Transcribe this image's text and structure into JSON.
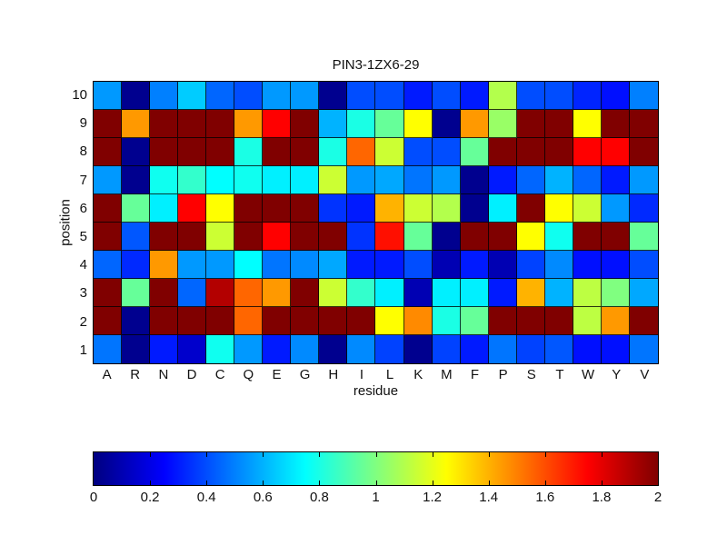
{
  "figure": {
    "background_color": "#ffffff",
    "text_color": "#000000"
  },
  "chart_data": {
    "type": "heatmap",
    "title": "PIN3-1ZX6-29",
    "xlabel": "residue",
    "ylabel": "position",
    "x_categories": [
      "A",
      "R",
      "N",
      "D",
      "C",
      "Q",
      "E",
      "G",
      "H",
      "I",
      "L",
      "K",
      "M",
      "F",
      "P",
      "S",
      "T",
      "W",
      "Y",
      "V"
    ],
    "y_categories": [
      "10",
      "9",
      "8",
      "7",
      "6",
      "5",
      "4",
      "3",
      "2",
      "1"
    ],
    "rows_order": "top_to_bottom, position 10 at top, position 1 at bottom",
    "value_range": [
      0,
      2
    ],
    "colormap": "jet",
    "grid_line_color": "#000000",
    "values": [
      [
        0.55,
        0.03,
        0.5,
        0.65,
        0.45,
        0.4,
        0.55,
        0.55,
        0.03,
        0.4,
        0.4,
        0.3,
        0.4,
        0.3,
        1.1,
        0.4,
        0.4,
        0.32,
        0.28,
        0.5
      ],
      [
        2.0,
        1.45,
        2.0,
        2.0,
        2.0,
        1.45,
        1.75,
        2.0,
        0.6,
        0.8,
        0.95,
        1.25,
        0.03,
        1.45,
        1.05,
        2.0,
        2.0,
        1.25,
        2.0,
        2.0
      ],
      [
        2.0,
        0.03,
        2.0,
        2.0,
        2.0,
        0.8,
        2.0,
        2.0,
        0.8,
        1.55,
        1.15,
        0.4,
        0.4,
        0.95,
        2.0,
        2.0,
        2.0,
        1.75,
        1.75,
        2.0
      ],
      [
        0.55,
        0.03,
        0.78,
        0.85,
        0.75,
        0.78,
        0.72,
        0.72,
        1.15,
        0.55,
        0.58,
        0.48,
        0.55,
        0.03,
        0.3,
        0.45,
        0.6,
        0.45,
        0.3,
        0.55
      ],
      [
        2.0,
        0.95,
        0.72,
        1.75,
        1.25,
        2.0,
        2.0,
        2.0,
        0.35,
        0.3,
        1.4,
        1.15,
        1.1,
        0.03,
        0.72,
        2.0,
        1.25,
        1.15,
        0.55,
        0.33
      ],
      [
        2.0,
        0.42,
        2.0,
        2.0,
        1.15,
        2.0,
        1.75,
        2.0,
        2.0,
        0.35,
        1.72,
        0.95,
        0.03,
        2.0,
        2.0,
        1.25,
        0.78,
        2.0,
        2.0,
        0.95
      ],
      [
        0.45,
        0.33,
        1.45,
        0.55,
        0.55,
        0.75,
        0.48,
        0.52,
        0.58,
        0.3,
        0.3,
        0.4,
        0.1,
        0.3,
        0.1,
        0.38,
        0.52,
        0.28,
        0.28,
        0.4
      ],
      [
        2.0,
        0.95,
        2.0,
        0.45,
        1.9,
        1.55,
        1.45,
        2.0,
        1.15,
        0.85,
        0.72,
        0.1,
        0.72,
        0.72,
        0.3,
        1.4,
        0.6,
        1.12,
        1.0,
        0.58
      ],
      [
        2.0,
        0.03,
        2.0,
        2.0,
        2.0,
        1.55,
        2.0,
        2.0,
        2.0,
        2.0,
        1.25,
        1.48,
        0.8,
        0.95,
        2.0,
        2.0,
        2.0,
        1.12,
        1.45,
        2.0
      ],
      [
        0.48,
        0.03,
        0.3,
        0.15,
        0.78,
        0.55,
        0.3,
        0.52,
        0.03,
        0.52,
        0.38,
        0.03,
        0.38,
        0.3,
        0.48,
        0.38,
        0.42,
        0.28,
        0.28,
        0.48
      ]
    ],
    "colorbar": {
      "orientation": "horizontal",
      "min": 0,
      "max": 2,
      "tick_values": [
        0,
        0.2,
        0.4,
        0.6,
        0.8,
        1,
        1.2,
        1.4,
        1.6,
        1.8,
        2
      ],
      "tick_labels": [
        "0",
        "0.2",
        "0.4",
        "0.6",
        "0.8",
        "1",
        "1.2",
        "1.4",
        "1.6",
        "1.8",
        "2"
      ]
    },
    "legend": null,
    "grid": "cell borders on, black"
  }
}
